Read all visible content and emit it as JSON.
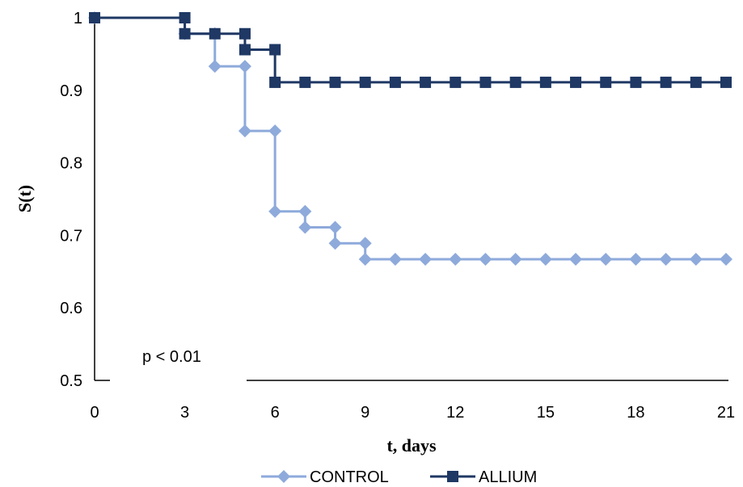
{
  "chart_data": {
    "type": "line",
    "step": true,
    "xlabel": "t, days",
    "ylabel": "S(t)",
    "xlim": [
      0,
      21
    ],
    "ylim": [
      0.5,
      1
    ],
    "xticks": [
      "0",
      "3",
      "6",
      "9",
      "12",
      "15",
      "18",
      "21"
    ],
    "xtick_values": [
      0,
      3,
      6,
      9,
      12,
      15,
      18,
      21
    ],
    "yticks": [
      "0.5",
      "0.6",
      "0.7",
      "0.8",
      "0.9",
      "1"
    ],
    "ytick_values": [
      0.5,
      0.6,
      0.7,
      0.8,
      0.9,
      1
    ],
    "grid": false,
    "legend_position": "bottom",
    "annotation": "p < 0.01",
    "series": [
      {
        "name": "CONTROL",
        "color": "#8eaadb",
        "marker": "diamond",
        "x": [
          0,
          3,
          4,
          5,
          6,
          7,
          8,
          9,
          10,
          11,
          12,
          13,
          14,
          15,
          16,
          17,
          18,
          19,
          20,
          21
        ],
        "y": [
          1,
          0.978,
          0.933,
          0.844,
          0.733,
          0.711,
          0.689,
          0.667,
          0.667,
          0.667,
          0.667,
          0.667,
          0.667,
          0.667,
          0.667,
          0.667,
          0.667,
          0.667,
          0.667,
          0.667
        ],
        "markers": [
          [
            0,
            1
          ],
          [
            3,
            0.978
          ],
          [
            4,
            0.978
          ],
          [
            4,
            0.933
          ],
          [
            5,
            0.933
          ],
          [
            5,
            0.844
          ],
          [
            6,
            0.844
          ],
          [
            6,
            0.733
          ],
          [
            7,
            0.733
          ],
          [
            7,
            0.711
          ],
          [
            8,
            0.711
          ],
          [
            8,
            0.689
          ],
          [
            9,
            0.689
          ],
          [
            9,
            0.667
          ],
          [
            10,
            0.667
          ],
          [
            11,
            0.667
          ],
          [
            12,
            0.667
          ],
          [
            13,
            0.667
          ],
          [
            14,
            0.667
          ],
          [
            15,
            0.667
          ],
          [
            16,
            0.667
          ],
          [
            17,
            0.667
          ],
          [
            18,
            0.667
          ],
          [
            19,
            0.667
          ],
          [
            20,
            0.667
          ],
          [
            21,
            0.667
          ]
        ]
      },
      {
        "name": "ALLIUM",
        "color": "#1f3864",
        "marker": "square",
        "x": [
          0,
          3,
          5,
          6,
          7,
          8,
          9,
          10,
          11,
          12,
          13,
          14,
          15,
          16,
          17,
          18,
          19,
          20,
          21
        ],
        "y": [
          1,
          0.978,
          0.956,
          0.911,
          0.911,
          0.911,
          0.911,
          0.911,
          0.911,
          0.911,
          0.911,
          0.911,
          0.911,
          0.911,
          0.911,
          0.911,
          0.911,
          0.911,
          0.911
        ],
        "markers": [
          [
            0,
            1
          ],
          [
            3,
            1
          ],
          [
            3,
            0.978
          ],
          [
            4,
            0.978
          ],
          [
            5,
            0.978
          ],
          [
            5,
            0.956
          ],
          [
            6,
            0.956
          ],
          [
            6,
            0.911
          ],
          [
            7,
            0.911
          ],
          [
            8,
            0.911
          ],
          [
            9,
            0.911
          ],
          [
            10,
            0.911
          ],
          [
            11,
            0.911
          ],
          [
            12,
            0.911
          ],
          [
            13,
            0.911
          ],
          [
            14,
            0.911
          ],
          [
            15,
            0.911
          ],
          [
            16,
            0.911
          ],
          [
            17,
            0.911
          ],
          [
            18,
            0.911
          ],
          [
            19,
            0.911
          ],
          [
            20,
            0.911
          ],
          [
            21,
            0.911
          ]
        ]
      }
    ]
  }
}
